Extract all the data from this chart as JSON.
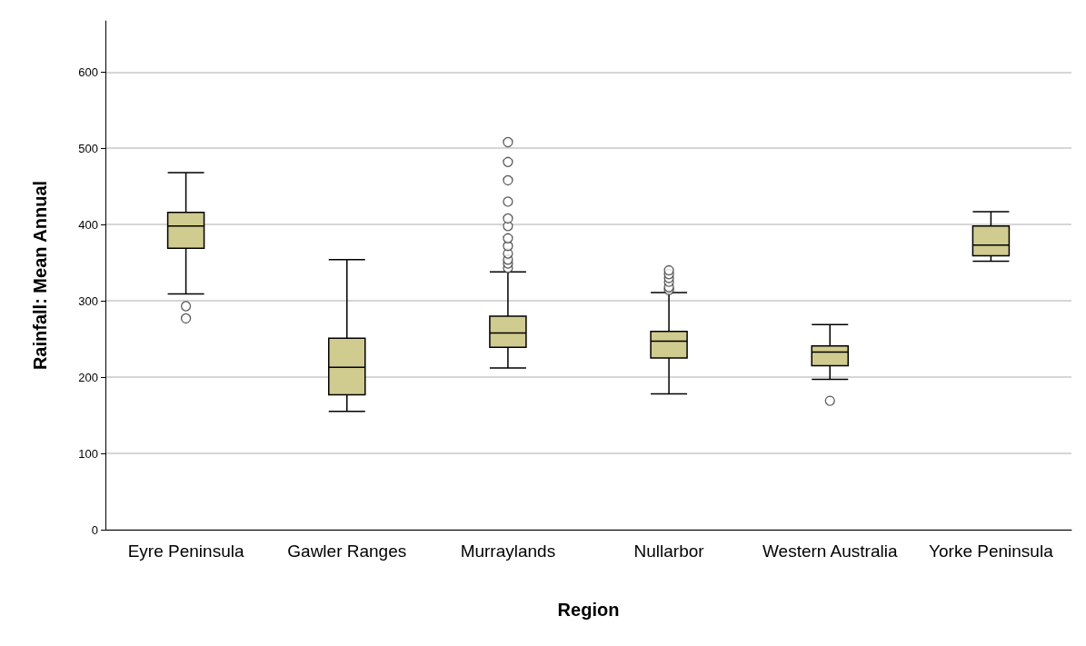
{
  "chart_data": {
    "type": "box",
    "xlabel": "Region",
    "ylabel": "Rainfall: Mean Annual",
    "categories": [
      "Eyre Peninsula",
      "Gawler Ranges",
      "Murraylands",
      "Nullarbor",
      "Western Australia",
      "Yorke Peninsula"
    ],
    "color": "#d0cb8f",
    "boxes": [
      {
        "low": 309,
        "q1": 369,
        "median": 398,
        "q3": 416,
        "high": 468,
        "outliers": [
          293,
          277
        ]
      },
      {
        "low": 155,
        "q1": 177,
        "median": 213,
        "q3": 251,
        "high": 354
      },
      {
        "low": 212,
        "q1": 239,
        "median": 258,
        "q3": 280,
        "high": 338,
        "outliers": [
          343,
          349,
          354,
          362,
          372,
          382,
          398,
          408,
          430,
          458,
          482,
          508
        ]
      },
      {
        "low": 178,
        "q1": 225,
        "median": 247,
        "q3": 260,
        "high": 311,
        "outliers": [
          314,
          318,
          325,
          330,
          335,
          340
        ]
      },
      {
        "low": 197,
        "q1": 215,
        "median": 233,
        "q3": 241,
        "high": 269,
        "outliers": [
          169
        ]
      },
      {
        "low": 352,
        "q1": 359,
        "median": 373,
        "q3": 398,
        "high": 417
      }
    ],
    "ylim": [
      0,
      667
    ],
    "yticks": [
      0,
      100,
      200,
      300,
      400,
      500,
      600
    ],
    "grid": "y",
    "marker": "circle"
  }
}
